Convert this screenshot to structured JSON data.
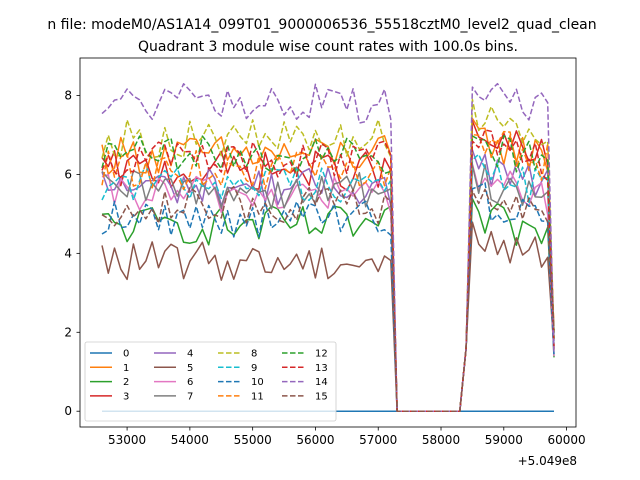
{
  "chart_data": {
    "type": "line",
    "suptitle": "n file: modeM0/AS1A14_099T01_9000006536_55518cztM0_level2_quad_clean",
    "title": "Quadrant 3 module wise count rates with 100.0s bins.",
    "xlabel": "",
    "ylabel": "",
    "offset_text": "+5.049e8",
    "xlim": [
      52250,
      60150
    ],
    "ylim": [
      -0.4,
      8.95
    ],
    "xticks": [
      53000,
      54000,
      55000,
      56000,
      57000,
      58000,
      59000,
      60000
    ],
    "yticks": [
      0,
      2,
      4,
      6,
      8
    ],
    "grid": false,
    "legend": {
      "placement": "lower-left",
      "columns": 4
    },
    "segments": [
      {
        "x_start": 52600,
        "x_end": 57200
      },
      {
        "x_start": 58400,
        "x_end": 59700
      }
    ],
    "bin_step": 100,
    "series": [
      {
        "name": "0",
        "color": "#1f77b4",
        "style": "solid",
        "zero": true
      },
      {
        "name": "1",
        "color": "#ff7f0e",
        "style": "solid",
        "level": 6.5,
        "level2": 7.0
      },
      {
        "name": "2",
        "color": "#2ca02c",
        "style": "solid",
        "level": 4.7,
        "level2": 5.0
      },
      {
        "name": "3",
        "color": "#d62728",
        "style": "solid",
        "level": 6.1,
        "level2": 7.0
      },
      {
        "name": "4",
        "color": "#9467bd",
        "style": "solid",
        "level": 5.7,
        "level2": 6.3
      },
      {
        "name": "5",
        "color": "#8c564b",
        "style": "solid",
        "level": 3.8,
        "level2": 4.5
      },
      {
        "name": "6",
        "color": "#e377c2",
        "style": "solid",
        "level": 5.5,
        "level2": 6.0
      },
      {
        "name": "7",
        "color": "#7f7f7f",
        "style": "solid",
        "level": 5.6,
        "level2": 6.0
      },
      {
        "name": "8",
        "color": "#bcbd22",
        "style": "dashed",
        "level": 6.9,
        "level2": 7.7
      },
      {
        "name": "9",
        "color": "#17becf",
        "style": "dashed",
        "level": 5.8,
        "level2": 6.2
      },
      {
        "name": "10",
        "color": "#1f77b4",
        "style": "dashed",
        "level": 4.9,
        "level2": 5.5
      },
      {
        "name": "11",
        "color": "#ff7f0e",
        "style": "dashed",
        "level": 6.1,
        "level2": 6.9
      },
      {
        "name": "12",
        "color": "#2ca02c",
        "style": "dashed",
        "level": 6.5,
        "level2": 6.9
      },
      {
        "name": "13",
        "color": "#d62728",
        "style": "dashed",
        "level": 6.4,
        "level2": 6.8
      },
      {
        "name": "14",
        "color": "#9467bd",
        "style": "dashed",
        "level": 7.8,
        "level2": 8.2
      },
      {
        "name": "15",
        "color": "#8c564b",
        "style": "dashed",
        "level": 5.2,
        "level2": 5.6
      }
    ]
  }
}
